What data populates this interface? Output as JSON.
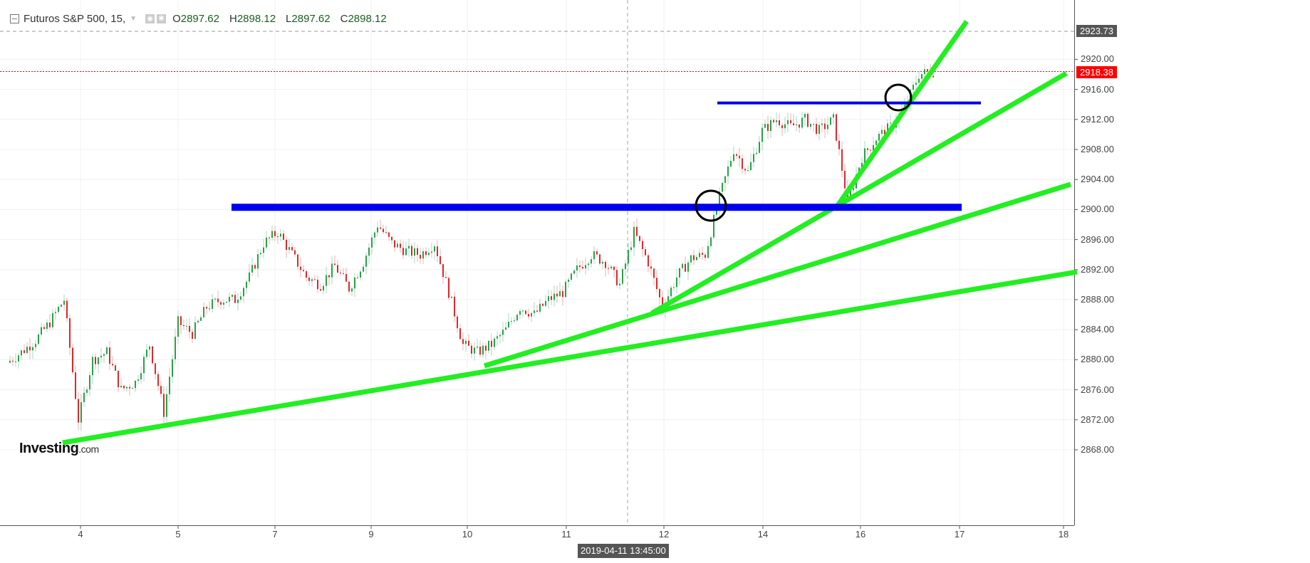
{
  "header": {
    "symbol": "Futuros S&P 500, 15,",
    "open_label": "O",
    "open": "2897.62",
    "high_label": "H",
    "high": "2898.12",
    "low_label": "L",
    "low": "2897.62",
    "close_label": "C",
    "close": "2898.12"
  },
  "logo": {
    "brand": "Investing",
    "suffix": ".com"
  },
  "crosshair": {
    "time": "2019-04-11 13:45:00",
    "price": "2923.73"
  },
  "last_price": "2918.38",
  "colors": {
    "up": "#26a243",
    "down": "#e0262a",
    "trendline": "#22ee22",
    "level": "#0000ee",
    "last_price": "#ff0000"
  },
  "chart_data": {
    "type": "candlestick",
    "title": "Futuros S&P 500, 15",
    "x_tick_labels": [
      "4",
      "5",
      "7",
      "9",
      "10",
      "11",
      "12",
      "14",
      "16",
      "17",
      "18"
    ],
    "y_tick_labels": [
      "2920.00",
      "2916.00",
      "2912.00",
      "2908.00",
      "2904.00",
      "2900.00",
      "2896.00",
      "2892.00",
      "2888.00",
      "2884.00",
      "2880.00",
      "2876.00",
      "2872.00",
      "2868.00"
    ],
    "ylim": [
      2866,
      2925
    ],
    "grid": true,
    "approx_close_path": [
      2879.6,
      2881,
      2882.6,
      2885,
      2888,
      2872,
      2880,
      2881,
      2876,
      2877,
      2882,
      2873,
      2885,
      2883.5,
      2887,
      2888,
      2888,
      2891,
      2895.5,
      2897,
      2894,
      2891,
      2890,
      2892.5,
      2889.5,
      2893,
      2898,
      2895.5,
      2894.5,
      2894,
      2895.5,
      2889,
      2882,
      2881,
      2882,
      2884,
      2887,
      2886,
      2888,
      2889,
      2892,
      2894,
      2893,
      2890,
      2897,
      2893,
      2887,
      2891,
      2893.5,
      2894,
      2901.6,
      2908,
      2905,
      2910.5,
      2912,
      2911,
      2912,
      2910.5,
      2912,
      2901,
      2907,
      2909.5,
      2911,
      2913.5,
      2918,
      2918.4
    ],
    "horizontal_levels": [
      2900.3,
      2914.2
    ]
  }
}
